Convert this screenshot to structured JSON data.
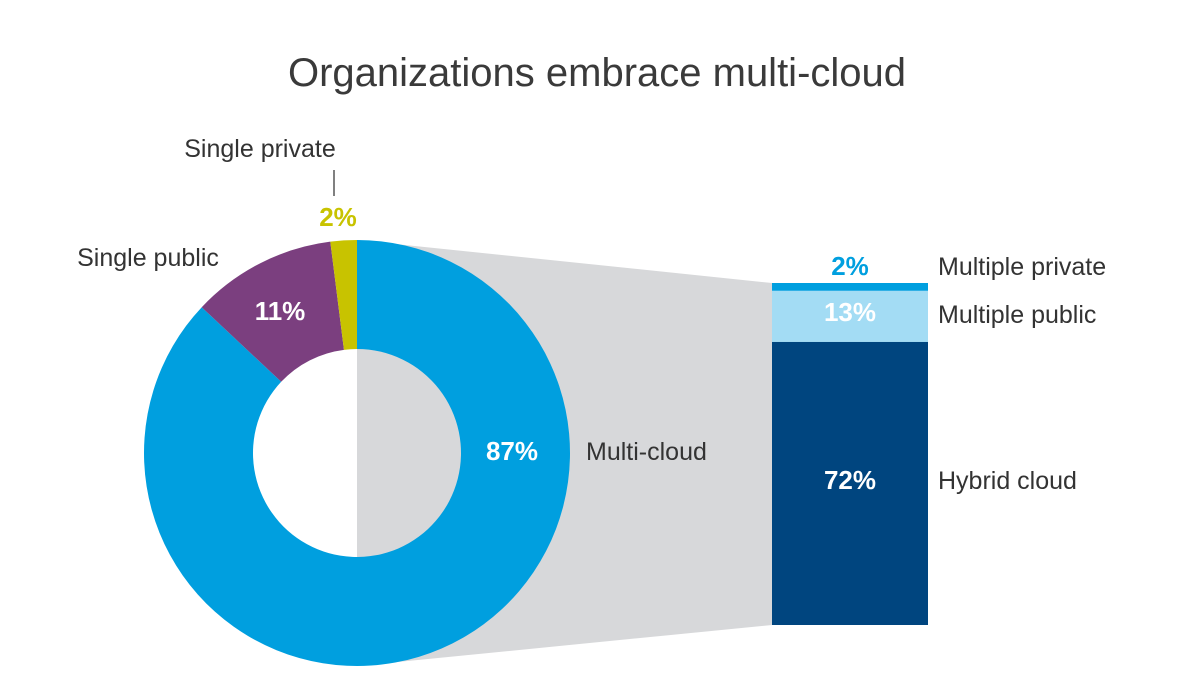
{
  "chart_data": {
    "type": "pie",
    "title": "Organizations embrace multi-cloud",
    "pie": {
      "categories": [
        "Multi-cloud",
        "Single public",
        "Single private"
      ],
      "values": [
        87,
        11,
        2
      ],
      "labels": [
        "87%",
        "11%",
        "2%"
      ],
      "colors": [
        "#009fdf",
        "#7b3f7f",
        "#c8c300"
      ]
    },
    "breakdown": {
      "parent": "Multi-cloud",
      "categories": [
        "Multiple private",
        "Multiple public",
        "Hybrid cloud"
      ],
      "values": [
        2,
        13,
        72
      ],
      "labels": [
        "2%",
        "13%",
        "72%"
      ],
      "colors": [
        "#009fdf",
        "#a3dcf4",
        "#00457f"
      ]
    }
  }
}
